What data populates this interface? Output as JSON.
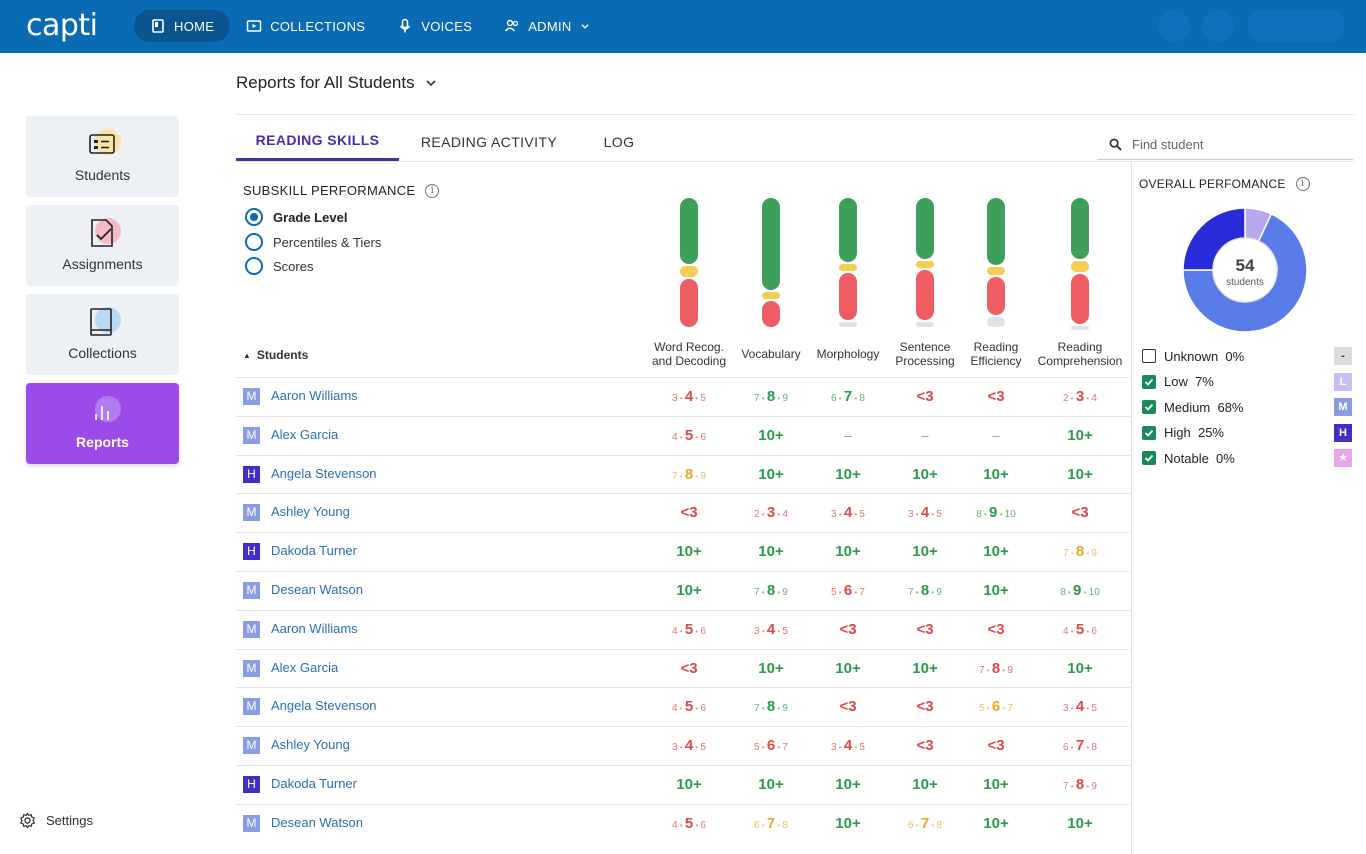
{
  "app": {
    "logo": "capti"
  },
  "nav": {
    "items": [
      {
        "label": "HOME",
        "icon": "home-icon",
        "active": true
      },
      {
        "label": "COLLECTIONS",
        "icon": "collections-icon",
        "active": false
      },
      {
        "label": "VOICES",
        "icon": "voices-icon",
        "active": false
      },
      {
        "label": "ADMIN",
        "icon": "admin-icon",
        "active": false
      }
    ]
  },
  "sidebar": {
    "items": [
      {
        "label": "Students",
        "icon": "students-icon",
        "accent": "#f9e3a6"
      },
      {
        "label": "Assignments",
        "icon": "assignments-icon",
        "accent": "#f6b9c7"
      },
      {
        "label": "Collections",
        "icon": "collections-book-icon",
        "accent": "#b9d8f3"
      },
      {
        "label": "Reports",
        "icon": "reports-icon",
        "accent": "#b07df0",
        "active": true
      }
    ],
    "settings_label": "Settings"
  },
  "header": {
    "title": "Reports for All Students"
  },
  "tabs": [
    {
      "label": "READING SKILLS",
      "active": true
    },
    {
      "label": "READING ACTIVITY",
      "active": false
    },
    {
      "label": "LOG",
      "active": false
    }
  ],
  "search": {
    "placeholder": "Find student"
  },
  "subskill": {
    "title": "SUBSKILL PERFORMANCE",
    "options": [
      {
        "label": "Grade Level",
        "selected": true
      },
      {
        "label": "Percentiles & Tiers",
        "selected": false
      },
      {
        "label": "Scores",
        "selected": false
      }
    ]
  },
  "table": {
    "students_header": "Students",
    "columns": [
      {
        "line1": "Word Recog.",
        "line2": "and Decoding"
      },
      {
        "line1": "Vocabulary",
        "line2": ""
      },
      {
        "line1": "Morphology",
        "line2": ""
      },
      {
        "line1": "Sentence",
        "line2": "Processing"
      },
      {
        "line1": "Reading",
        "line2": "Efficiency"
      },
      {
        "line1": "Reading",
        "line2": "Comprehension"
      }
    ],
    "rows": [
      {
        "badge": "M",
        "name": "Aaron Williams",
        "cells": [
          [
            "3",
            "4",
            "5",
            "red"
          ],
          [
            "7",
            "8",
            "9",
            "green"
          ],
          [
            "6",
            "7",
            "8",
            "green"
          ],
          [
            "<3",
            "",
            "",
            "red"
          ],
          [
            "<3",
            "",
            "",
            "red"
          ],
          [
            "2",
            "3",
            "4",
            "red"
          ]
        ]
      },
      {
        "badge": "M",
        "name": "Alex Garcia",
        "cells": [
          [
            "4",
            "5",
            "6",
            "red"
          ],
          [
            "10+",
            "",
            "",
            "green"
          ],
          [
            "–",
            "",
            "",
            "dash"
          ],
          [
            "–",
            "",
            "",
            "dash"
          ],
          [
            "–",
            "",
            "",
            "dash"
          ],
          [
            "10+",
            "",
            "",
            "green"
          ]
        ]
      },
      {
        "badge": "H",
        "name": "Angela Stevenson",
        "cells": [
          [
            "7",
            "8",
            "9",
            "yellow"
          ],
          [
            "10+",
            "",
            "",
            "green"
          ],
          [
            "10+",
            "",
            "",
            "green"
          ],
          [
            "10+",
            "",
            "",
            "green"
          ],
          [
            "10+",
            "",
            "",
            "green"
          ],
          [
            "10+",
            "",
            "",
            "green"
          ]
        ]
      },
      {
        "badge": "M",
        "name": "Ashley Young",
        "cells": [
          [
            "<3",
            "",
            "",
            "red"
          ],
          [
            "2",
            "3",
            "4",
            "red"
          ],
          [
            "3",
            "4",
            "5",
            "red"
          ],
          [
            "3",
            "4",
            "5",
            "red"
          ],
          [
            "8",
            "9",
            "10",
            "green"
          ],
          [
            "<3",
            "",
            "",
            "red"
          ]
        ]
      },
      {
        "badge": "H",
        "name": "Dakoda Turner",
        "cells": [
          [
            "10+",
            "",
            "",
            "green"
          ],
          [
            "10+",
            "",
            "",
            "green"
          ],
          [
            "10+",
            "",
            "",
            "green"
          ],
          [
            "10+",
            "",
            "",
            "green"
          ],
          [
            "10+",
            "",
            "",
            "green"
          ],
          [
            "7",
            "8",
            "9",
            "yellow"
          ]
        ]
      },
      {
        "badge": "M",
        "name": "Desean Watson",
        "cells": [
          [
            "10+",
            "",
            "",
            "green"
          ],
          [
            "7",
            "8",
            "9",
            "green"
          ],
          [
            "5",
            "6",
            "7",
            "red"
          ],
          [
            "7",
            "8",
            "9",
            "green"
          ],
          [
            "10+",
            "",
            "",
            "green"
          ],
          [
            "8",
            "9",
            "10",
            "green"
          ]
        ]
      },
      {
        "badge": "M",
        "name": "Aaron Williams",
        "cells": [
          [
            "4",
            "5",
            "6",
            "red"
          ],
          [
            "3",
            "4",
            "5",
            "red"
          ],
          [
            "<3",
            "",
            "",
            "red"
          ],
          [
            "<3",
            "",
            "",
            "red"
          ],
          [
            "<3",
            "",
            "",
            "red"
          ],
          [
            "4",
            "5",
            "6",
            "red"
          ]
        ]
      },
      {
        "badge": "M",
        "name": "Alex Garcia",
        "cells": [
          [
            "<3",
            "",
            "",
            "red"
          ],
          [
            "10+",
            "",
            "",
            "green"
          ],
          [
            "10+",
            "",
            "",
            "green"
          ],
          [
            "10+",
            "",
            "",
            "green"
          ],
          [
            "7",
            "8",
            "9",
            "red"
          ],
          [
            "10+",
            "",
            "",
            "green"
          ]
        ]
      },
      {
        "badge": "M",
        "name": "Angela Stevenson",
        "cells": [
          [
            "4",
            "5",
            "6",
            "red"
          ],
          [
            "7",
            "8",
            "9",
            "green"
          ],
          [
            "<3",
            "",
            "",
            "red"
          ],
          [
            "<3",
            "",
            "",
            "red"
          ],
          [
            "5",
            "6",
            "7",
            "yellow"
          ],
          [
            "3",
            "4",
            "5",
            "red"
          ]
        ]
      },
      {
        "badge": "M",
        "name": "Ashley Young",
        "cells": [
          [
            "3",
            "4",
            "5",
            "red"
          ],
          [
            "5",
            "6",
            "7",
            "red"
          ],
          [
            "3",
            "4",
            "5",
            "red"
          ],
          [
            "<3",
            "",
            "",
            "red"
          ],
          [
            "<3",
            "",
            "",
            "red"
          ],
          [
            "6",
            "7",
            "8",
            "red"
          ]
        ]
      },
      {
        "badge": "H",
        "name": "Dakoda Turner",
        "cells": [
          [
            "10+",
            "",
            "",
            "green"
          ],
          [
            "10+",
            "",
            "",
            "green"
          ],
          [
            "10+",
            "",
            "",
            "green"
          ],
          [
            "10+",
            "",
            "",
            "green"
          ],
          [
            "10+",
            "",
            "",
            "green"
          ],
          [
            "7",
            "8",
            "9",
            "red"
          ]
        ]
      },
      {
        "badge": "M",
        "name": "Desean Watson",
        "cells": [
          [
            "4",
            "5",
            "6",
            "red"
          ],
          [
            "6",
            "7",
            "8",
            "yellow"
          ],
          [
            "10+",
            "",
            "",
            "green"
          ],
          [
            "6",
            "7",
            "8",
            "yellow"
          ],
          [
            "10+",
            "",
            "",
            "green"
          ],
          [
            "10+",
            "",
            "",
            "green"
          ]
        ]
      }
    ]
  },
  "subskill_bars": [
    {
      "green": 0.52,
      "yellow": 0.1,
      "red": 0.38,
      "gray": 0.0
    },
    {
      "green": 0.72,
      "yellow": 0.07,
      "red": 0.21,
      "gray": 0.0
    },
    {
      "green": 0.5,
      "yellow": 0.07,
      "red": 0.38,
      "gray": 0.05
    },
    {
      "green": 0.48,
      "yellow": 0.07,
      "red": 0.4,
      "gray": 0.05
    },
    {
      "green": 0.53,
      "yellow": 0.07,
      "red": 0.31,
      "gray": 0.09
    },
    {
      "green": 0.48,
      "yellow": 0.1,
      "red": 0.4,
      "gray": 0.02
    }
  ],
  "overall": {
    "title": "OVERALL PERFOMANCE",
    "total": "54",
    "total_label": "students",
    "legend": [
      {
        "label": "Unknown",
        "pct": "0%",
        "checked": false,
        "badge": "-",
        "color": "#dcdcdc",
        "badge_text_color": "#333"
      },
      {
        "label": "Low",
        "pct": "7%",
        "checked": true,
        "badge": "L",
        "color": "#c7bff2",
        "badge_text_color": "#fff"
      },
      {
        "label": "Medium",
        "pct": "68%",
        "checked": true,
        "badge": "M",
        "color": "#8a9de3",
        "badge_text_color": "#fff"
      },
      {
        "label": "High",
        "pct": "25%",
        "checked": true,
        "badge": "H",
        "color": "#3f2fc4",
        "badge_text_color": "#fff"
      },
      {
        "label": "Notable",
        "pct": "0%",
        "checked": true,
        "badge": "★",
        "color": "#e9a4ea",
        "badge_text_color": "#fff"
      }
    ],
    "donut": [
      {
        "name": "Low",
        "value": 7,
        "color": "#b7a8ef"
      },
      {
        "name": "Medium",
        "value": 68,
        "color": "#5a7ce8"
      },
      {
        "name": "High",
        "value": 25,
        "color": "#2a2bd8"
      }
    ]
  },
  "colors": {
    "accent": "#0a6ab2",
    "tab_active": "#4b2ca8",
    "green": "#2c9a4a",
    "red": "#e04848",
    "yellow": "#e9a82d",
    "badge_M": "#8a9de3",
    "badge_H": "#3f2fc4"
  }
}
